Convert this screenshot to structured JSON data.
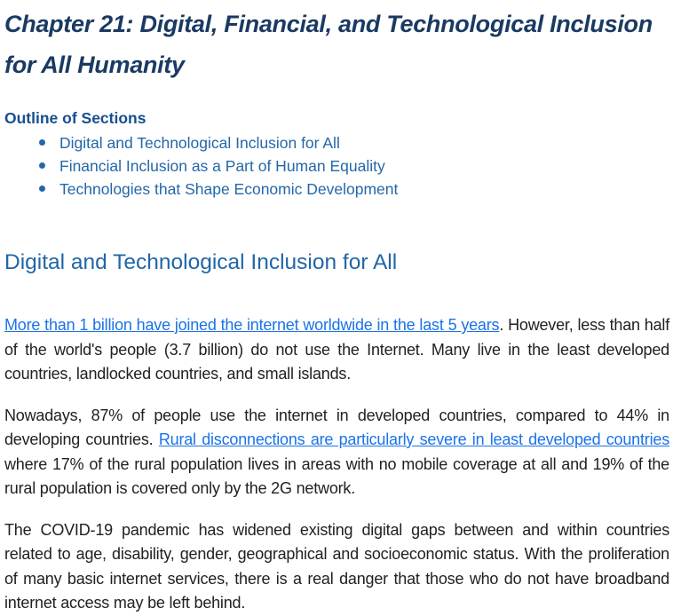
{
  "document": {
    "title": "Chapter 21: Digital, Financial, and Technological Inclusion for All Humanity",
    "outline": {
      "heading": "Outline of Sections",
      "items": [
        "Digital and Technological Inclusion for All",
        "Financial Inclusion as a Part of Human Equality",
        "Technologies that Shape Economic Development"
      ]
    },
    "section": {
      "heading": "Digital and Technological Inclusion for All",
      "paragraphs": [
        {
          "link_text": "More than 1 billion have joined the internet worldwide in the last 5 years",
          "after_link": ". However, less than half of the world's people (3.7 billion) do not use the Internet. Many live in the least developed countries, landlocked countries, and small islands."
        },
        {
          "before_link": "Nowadays, 87% of people use the internet in developed countries, compared to 44% in developing countries. ",
          "link_text": "Rural disconnections are particularly severe in least developed countries",
          "after_link": " where 17% of the rural population lives in areas with no mobile coverage at all and 19% of the rural population is covered only by the 2G network."
        },
        {
          "text": "The COVID-19 pandemic has widened existing digital gaps between and within countries related to age, disability, gender, geographical and socioeconomic status. With the proliferation of many basic internet services, there is a real danger that those who do not have broadband internet access may be left behind."
        }
      ]
    },
    "colors": {
      "title_navy": "#1a3a63",
      "outline_heading_navy": "#174f8f",
      "toc_item_blue": "#2467a8",
      "section_heading_blue": "#2166a6",
      "hyperlink_blue": "#1a73e8",
      "body_text": "#202124",
      "background": "#ffffff"
    }
  }
}
